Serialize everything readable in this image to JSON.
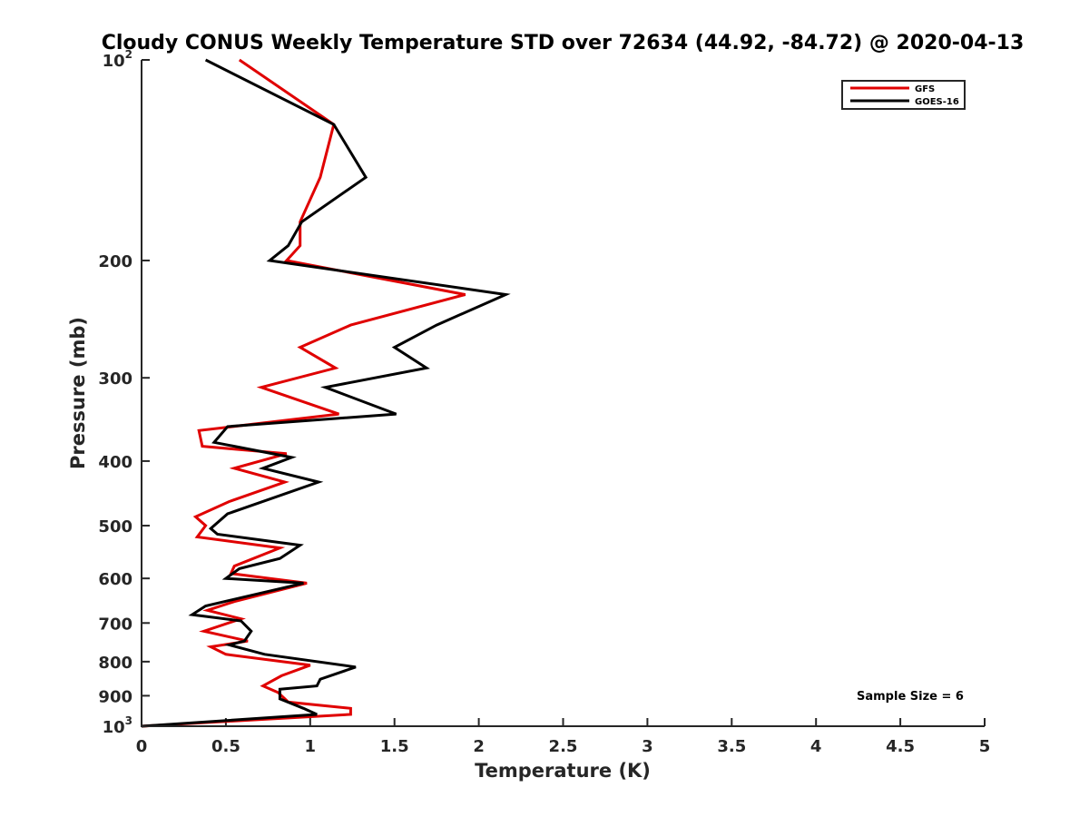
{
  "chart_data": {
    "type": "line",
    "title": "Cloudy CONUS Weekly Temperature STD over 72634 (44.92, -84.72) @ 2020-04-13",
    "xlabel": "Temperature (K)",
    "ylabel": "Pressure (mb)",
    "xlim": [
      0,
      5
    ],
    "ylim": [
      100,
      1000
    ],
    "y_scale": "log",
    "y_reversed": true,
    "grid": false,
    "legend_position": "top-right",
    "x_ticks": [
      0,
      0.5,
      1,
      1.5,
      2,
      2.5,
      3,
      3.5,
      4,
      4.5,
      5
    ],
    "x_tick_labels": [
      "0",
      "0.5",
      "1",
      "1.5",
      "2",
      "2.5",
      "3",
      "3.5",
      "4",
      "4.5",
      "5"
    ],
    "y_ticks": [
      100,
      200,
      300,
      400,
      500,
      600,
      700,
      800,
      900,
      1000
    ],
    "y_tick_labels": [
      {
        "base": "10",
        "sup": "2"
      },
      {
        "base": "200",
        "sup": ""
      },
      {
        "base": "300",
        "sup": ""
      },
      {
        "base": "400",
        "sup": ""
      },
      {
        "base": "500",
        "sup": ""
      },
      {
        "base": "600",
        "sup": ""
      },
      {
        "base": "700",
        "sup": ""
      },
      {
        "base": "800",
        "sup": ""
      },
      {
        "base": "900",
        "sup": ""
      },
      {
        "base": "10",
        "sup": "3"
      }
    ],
    "annotation": "Sample Size = 6",
    "series": [
      {
        "name": "GFS",
        "color": "#e00000",
        "points": [
          [
            0.58,
            100
          ],
          [
            1.14,
            125
          ],
          [
            1.06,
            150
          ],
          [
            0.94,
            175
          ],
          [
            0.94,
            190
          ],
          [
            0.86,
            200
          ],
          [
            1.92,
            225
          ],
          [
            1.24,
            250
          ],
          [
            0.94,
            270
          ],
          [
            1.15,
            290
          ],
          [
            0.71,
            310
          ],
          [
            1.17,
            340
          ],
          [
            0.34,
            360
          ],
          [
            0.36,
            380
          ],
          [
            0.86,
            390
          ],
          [
            0.55,
            410
          ],
          [
            0.85,
            430
          ],
          [
            0.52,
            460
          ],
          [
            0.32,
            485
          ],
          [
            0.38,
            500
          ],
          [
            0.33,
            520
          ],
          [
            0.82,
            540
          ],
          [
            0.55,
            575
          ],
          [
            0.53,
            590
          ],
          [
            0.98,
            610
          ],
          [
            0.55,
            650
          ],
          [
            0.39,
            670
          ],
          [
            0.59,
            690
          ],
          [
            0.37,
            720
          ],
          [
            0.63,
            745
          ],
          [
            0.41,
            760
          ],
          [
            0.5,
            780
          ],
          [
            1.0,
            810
          ],
          [
            0.83,
            840
          ],
          [
            0.72,
            870
          ],
          [
            0.81,
            890
          ],
          [
            0.87,
            920
          ],
          [
            1.24,
            940
          ],
          [
            1.24,
            960
          ],
          [
            0.0,
            1000
          ]
        ]
      },
      {
        "name": "GOES-16",
        "color": "#000000",
        "points": [
          [
            0.38,
            100
          ],
          [
            1.14,
            125
          ],
          [
            1.33,
            150
          ],
          [
            0.95,
            175
          ],
          [
            0.87,
            190
          ],
          [
            0.76,
            200
          ],
          [
            2.16,
            225
          ],
          [
            1.75,
            250
          ],
          [
            1.5,
            270
          ],
          [
            1.69,
            290
          ],
          [
            1.09,
            310
          ],
          [
            1.51,
            340
          ],
          [
            0.51,
            355
          ],
          [
            0.43,
            375
          ],
          [
            0.89,
            395
          ],
          [
            0.72,
            410
          ],
          [
            1.05,
            430
          ],
          [
            0.51,
            480
          ],
          [
            0.41,
            505
          ],
          [
            0.45,
            515
          ],
          [
            0.94,
            535
          ],
          [
            0.82,
            560
          ],
          [
            0.58,
            580
          ],
          [
            0.5,
            600
          ],
          [
            0.96,
            610
          ],
          [
            0.38,
            660
          ],
          [
            0.3,
            680
          ],
          [
            0.59,
            695
          ],
          [
            0.65,
            720
          ],
          [
            0.61,
            745
          ],
          [
            0.52,
            755
          ],
          [
            0.73,
            780
          ],
          [
            1.27,
            815
          ],
          [
            1.06,
            850
          ],
          [
            1.04,
            870
          ],
          [
            0.82,
            880
          ],
          [
            0.82,
            910
          ],
          [
            0.96,
            940
          ],
          [
            1.04,
            960
          ],
          [
            0.0,
            1000
          ]
        ]
      }
    ]
  }
}
